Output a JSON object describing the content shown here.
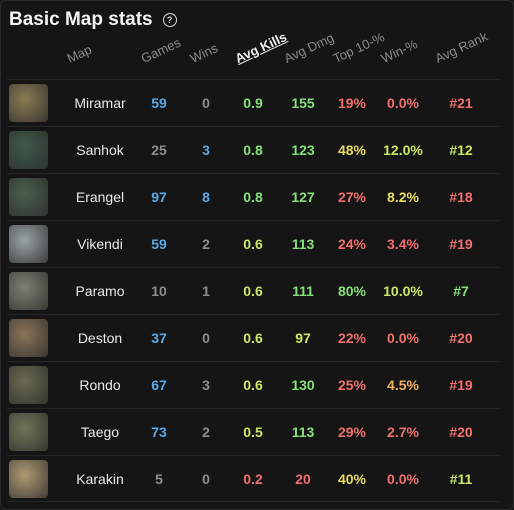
{
  "title": "Basic Map stats",
  "help_icon": "question-circle-icon",
  "headers": {
    "map": "Map",
    "games": "Games",
    "wins": "Wins",
    "kills": "Avg Kills",
    "dmg": "Avg Dmg",
    "top10": "Top 10-%",
    "winp": "Win-%",
    "rank": "Avg Rank"
  },
  "colors": {
    "blue": "#5aa8e8",
    "grey": "#8e8e8e",
    "green": "#86e07a",
    "lime": "#c9e868",
    "yellow": "#e6dc62",
    "orange": "#f0b060",
    "red": "#f07070",
    "pink": "#ea6f6f"
  },
  "rows": [
    {
      "map": "Miramar",
      "games": "59",
      "wins": "0",
      "kills": "0.9",
      "dmg": "155",
      "top10": "19%",
      "winp": "0.0%",
      "rank": "#21",
      "thumb": "#8a7a55",
      "c": [
        "blue",
        "grey",
        "green",
        "green",
        "red",
        "red",
        "red"
      ]
    },
    {
      "map": "Sanhok",
      "games": "25",
      "wins": "3",
      "kills": "0.8",
      "dmg": "123",
      "top10": "48%",
      "winp": "12.0%",
      "rank": "#12",
      "thumb": "#3f5a4a",
      "c": [
        "grey",
        "blue",
        "green",
        "green",
        "yellow",
        "lime",
        "lime"
      ]
    },
    {
      "map": "Erangel",
      "games": "97",
      "wins": "8",
      "kills": "0.8",
      "dmg": "127",
      "top10": "27%",
      "winp": "8.2%",
      "rank": "#18",
      "thumb": "#4a5e4e",
      "c": [
        "blue",
        "blue",
        "green",
        "green",
        "red",
        "yellow",
        "red"
      ]
    },
    {
      "map": "Vikendi",
      "games": "59",
      "wins": "2",
      "kills": "0.6",
      "dmg": "113",
      "top10": "24%",
      "winp": "3.4%",
      "rank": "#19",
      "thumb": "#9aa3a8",
      "c": [
        "blue",
        "grey",
        "lime",
        "green",
        "red",
        "red",
        "red"
      ]
    },
    {
      "map": "Paramo",
      "games": "10",
      "wins": "1",
      "kills": "0.6",
      "dmg": "111",
      "top10": "80%",
      "winp": "10.0%",
      "rank": "#7",
      "thumb": "#7e7f73",
      "c": [
        "grey",
        "grey",
        "lime",
        "green",
        "green",
        "lime",
        "green"
      ]
    },
    {
      "map": "Deston",
      "games": "37",
      "wins": "0",
      "kills": "0.6",
      "dmg": "97",
      "top10": "22%",
      "winp": "0.0%",
      "rank": "#20",
      "thumb": "#8b7458",
      "c": [
        "blue",
        "grey",
        "lime",
        "lime",
        "red",
        "red",
        "red"
      ]
    },
    {
      "map": "Rondo",
      "games": "67",
      "wins": "3",
      "kills": "0.6",
      "dmg": "130",
      "top10": "25%",
      "winp": "4.5%",
      "rank": "#19",
      "thumb": "#6c6a50",
      "c": [
        "blue",
        "grey",
        "lime",
        "green",
        "red",
        "orange",
        "red"
      ]
    },
    {
      "map": "Taego",
      "games": "73",
      "wins": "2",
      "kills": "0.5",
      "dmg": "113",
      "top10": "29%",
      "winp": "2.7%",
      "rank": "#20",
      "thumb": "#6f7557",
      "c": [
        "blue",
        "grey",
        "lime",
        "green",
        "red",
        "red",
        "red"
      ]
    },
    {
      "map": "Karakin",
      "games": "5",
      "wins": "0",
      "kills": "0.2",
      "dmg": "20",
      "top10": "40%",
      "winp": "0.0%",
      "rank": "#11",
      "thumb": "#b09a72",
      "c": [
        "grey",
        "grey",
        "red",
        "red",
        "yellow",
        "red",
        "lime"
      ]
    }
  ]
}
